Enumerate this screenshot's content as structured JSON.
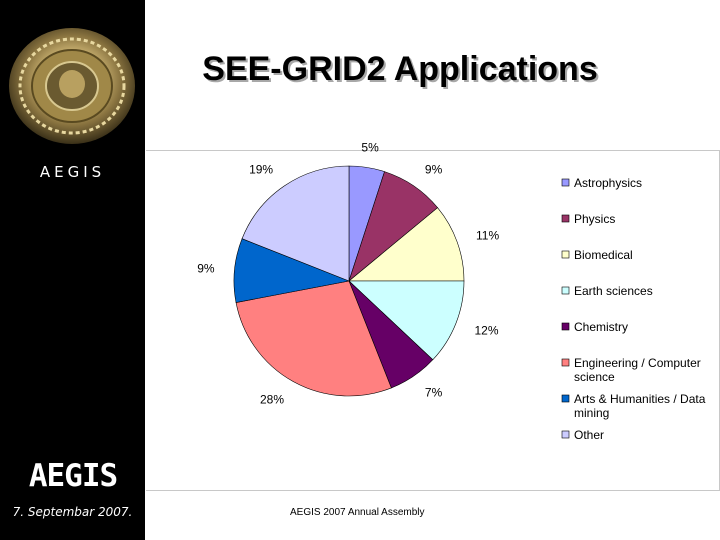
{
  "slide": {
    "title": "SEE-GRID2 Applications",
    "sidebar_label": "AEGIS",
    "logo_text": "AEGIS",
    "date": "7. Septembar 2007.",
    "footer": "AEGIS 2007 Annual Assembly"
  },
  "chart_data": {
    "type": "pie",
    "title": "",
    "legend_position": "right",
    "series": [
      {
        "name": "Astrophysics",
        "value": 5,
        "label": "5%",
        "color": "#9999ff"
      },
      {
        "name": "Physics",
        "value": 9,
        "label": "9%",
        "color": "#993366"
      },
      {
        "name": "Biomedical",
        "value": 11,
        "label": "11%",
        "color": "#ffffcc"
      },
      {
        "name": "Earth sciences",
        "value": 12,
        "label": "12%",
        "color": "#ccffff"
      },
      {
        "name": "Chemistry",
        "value": 7,
        "label": "7%",
        "color": "#660066"
      },
      {
        "name": "Engineering / Computer science",
        "value": 28,
        "label": "28%",
        "color": "#ff8080"
      },
      {
        "name": "Arts & Humanities / Data mining",
        "value": 9,
        "label": "9%",
        "color": "#0066cc"
      },
      {
        "name": "Other",
        "value": 19,
        "label": "19%",
        "color": "#ccccff"
      }
    ],
    "legend_lines": [
      [
        "Astrophysics"
      ],
      [
        "Physics"
      ],
      [
        "Biomedical"
      ],
      [
        "Earth sciences"
      ],
      [
        "Chemistry"
      ],
      [
        "Engineering / Computer",
        "science"
      ],
      [
        "Arts & Humanities / Data",
        "mining"
      ],
      [
        "Other"
      ]
    ]
  }
}
